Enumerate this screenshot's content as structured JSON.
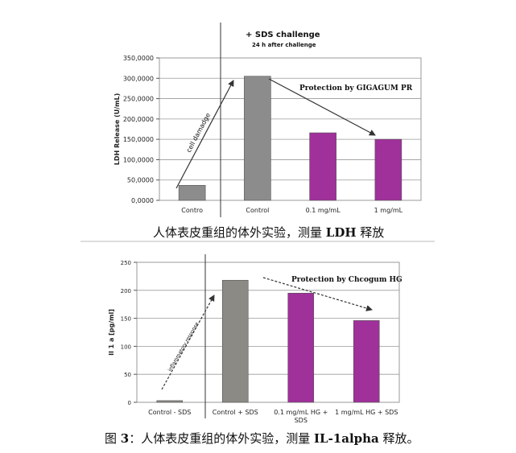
{
  "chart_data": [
    {
      "type": "bar",
      "categories": [
        "Contro",
        "Control",
        "0.1 mg/mL",
        "1 mg/mL"
      ],
      "values": [
        37000,
        305000,
        166000,
        150000
      ],
      "ylabel": "LDH Release (U/mL)",
      "ylim": [
        0,
        350000
      ],
      "yticks": [
        "0,0000",
        "50,0000",
        "100,0000",
        "150,0000",
        "200,0000",
        "250,0000",
        "300,0000",
        "350,0000"
      ],
      "grid": true,
      "bar_colors": [
        "#8c8c8c",
        "#8c8c8c",
        "#a0309a",
        "#a0309a"
      ],
      "annotations": {
        "challenge_title": "+ SDS challenge",
        "challenge_subtitle": "24 h after challenge",
        "protection": "Protection by GIGAGUM PR",
        "damage": "cell damadge"
      }
    },
    {
      "type": "bar",
      "categories": [
        "Control - SDS",
        "Control + SDS",
        "0.1 mg/mL HG +|SDS",
        "1 mg/mL HG + SDS"
      ],
      "values": [
        3,
        218,
        195,
        146
      ],
      "ylabel": "Il 1 a [pg/ml]",
      "ylim": [
        0,
        250
      ],
      "yticks": [
        "0",
        "50",
        "100",
        "150",
        "200",
        "250"
      ],
      "grid": true,
      "bar_colors": [
        "#8c8a85",
        "#8c8a85",
        "#a0309a",
        "#a0309a"
      ],
      "annotations": {
        "protection": "Protection by Chcogum HG",
        "damage": "inflammatory response"
      }
    }
  ],
  "captions": {
    "caption1_text": "人体表皮重组的体外实验，测量 ",
    "caption1_bold": "LDH",
    "caption1_tail": " 释放",
    "caption2_prefix": "图  ",
    "caption2_num": "3",
    "caption2_text": "：人体表皮重组的体外实验，测量 ",
    "caption2_bold": "IL-1alpha",
    "caption2_tail": " 释放。"
  }
}
